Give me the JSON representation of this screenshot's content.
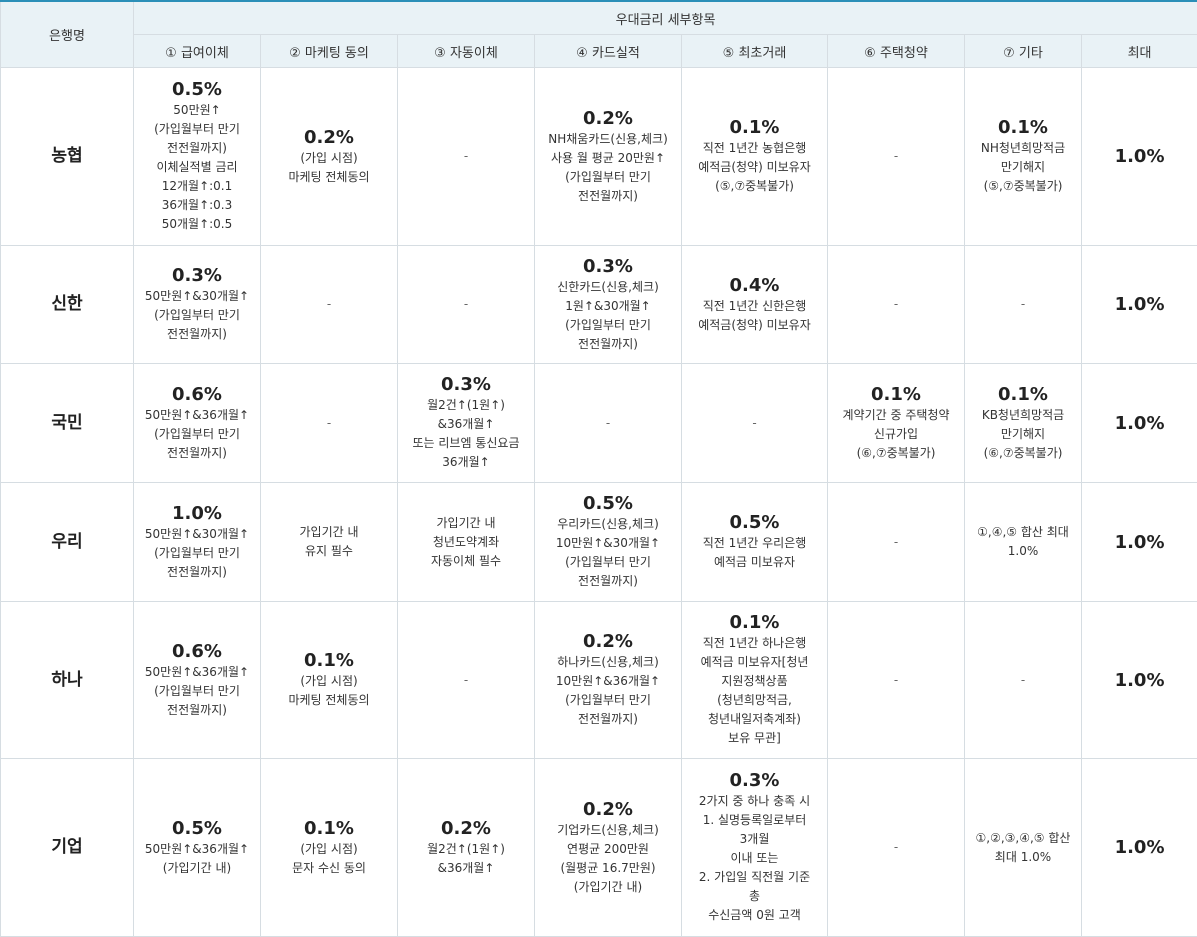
{
  "header": {
    "bank_col": "은행명",
    "group_title": "우대금리 세부항목",
    "columns": [
      "① 급여이체",
      "② 마케팅 동의",
      "③ 자동이체",
      "④ 카드실적",
      "⑤ 최초거래",
      "⑥ 주택청약",
      "⑦ 기타",
      "최대"
    ]
  },
  "rows": [
    {
      "bank": "농협",
      "max": "1.0%",
      "cells": [
        {
          "rate": "0.5%",
          "lines": [
            "50만원↑",
            "(가입월부터 만기",
            "전전월까지)",
            "이체실적별 금리",
            "12개월↑:0.1",
            "36개월↑:0.3",
            "50개월↑:0.5"
          ]
        },
        {
          "rate": "0.2%",
          "lines": [
            "(가입 시점)",
            "마케팅 전체동의"
          ]
        },
        {
          "rate": "",
          "lines": [
            "-"
          ]
        },
        {
          "rate": "0.2%",
          "lines": [
            "NH채움카드(신용,체크)",
            "사용 월 평균 20만원↑",
            "(가입월부터 만기",
            "전전월까지)"
          ]
        },
        {
          "rate": "0.1%",
          "lines": [
            "직전 1년간 농협은행",
            "예적금(청약) 미보유자",
            "(⑤,⑦중복불가)"
          ]
        },
        {
          "rate": "",
          "lines": [
            "-"
          ]
        },
        {
          "rate": "0.1%",
          "lines": [
            "NH청년희망적금",
            "만기해지",
            "(⑤,⑦중복불가)"
          ]
        }
      ]
    },
    {
      "bank": "신한",
      "max": "1.0%",
      "cells": [
        {
          "rate": "0.3%",
          "lines": [
            "50만원↑&30개월↑",
            "(가입일부터 만기",
            "전전월까지)"
          ]
        },
        {
          "rate": "",
          "lines": [
            "-"
          ]
        },
        {
          "rate": "",
          "lines": [
            "-"
          ]
        },
        {
          "rate": "0.3%",
          "lines": [
            "신한카드(신용,체크)",
            "1원↑&30개월↑",
            "(가입일부터 만기",
            "전전월까지)"
          ]
        },
        {
          "rate": "0.4%",
          "lines": [
            "직전 1년간 신한은행",
            "예적금(청약) 미보유자"
          ]
        },
        {
          "rate": "",
          "lines": [
            "-"
          ]
        },
        {
          "rate": "",
          "lines": [
            "-"
          ]
        }
      ]
    },
    {
      "bank": "국민",
      "max": "1.0%",
      "cells": [
        {
          "rate": "0.6%",
          "lines": [
            "50만원↑&36개월↑",
            "(가입월부터 만기",
            "전전월까지)"
          ]
        },
        {
          "rate": "",
          "lines": [
            "-"
          ]
        },
        {
          "rate": "0.3%",
          "lines": [
            "월2건↑(1원↑)",
            "&36개월↑",
            "또는 리브엠 통신요금",
            "36개월↑"
          ]
        },
        {
          "rate": "",
          "lines": [
            "-"
          ]
        },
        {
          "rate": "",
          "lines": [
            "-"
          ]
        },
        {
          "rate": "0.1%",
          "lines": [
            "계약기간 중 주택청약",
            "신규가입",
            "(⑥,⑦중복불가)"
          ]
        },
        {
          "rate": "0.1%",
          "lines": [
            "KB청년희망적금",
            "만기해지",
            "(⑥,⑦중복불가)"
          ]
        }
      ]
    },
    {
      "bank": "우리",
      "max": "1.0%",
      "cells": [
        {
          "rate": "1.0%",
          "lines": [
            "50만원↑&30개월↑",
            "(가입월부터 만기",
            "전전월까지)"
          ]
        },
        {
          "rate": "",
          "lines": [
            "가입기간 내",
            "유지 필수"
          ]
        },
        {
          "rate": "",
          "lines": [
            "가입기간 내",
            "청년도약계좌",
            "자동이체 필수"
          ]
        },
        {
          "rate": "0.5%",
          "lines": [
            "우리카드(신용,체크)",
            "10만원↑&30개월↑",
            "(가입월부터 만기",
            "전전월까지)"
          ]
        },
        {
          "rate": "0.5%",
          "lines": [
            "직전 1년간 우리은행",
            "예적금 미보유자"
          ]
        },
        {
          "rate": "",
          "lines": [
            "-"
          ]
        },
        {
          "rate": "",
          "lines": [
            "①,④,⑤ 합산 최대",
            "1.0%"
          ]
        }
      ]
    },
    {
      "bank": "하나",
      "max": "1.0%",
      "cells": [
        {
          "rate": "0.6%",
          "lines": [
            "50만원↑&36개월↑",
            "(가입월부터 만기",
            "전전월까지)"
          ]
        },
        {
          "rate": "0.1%",
          "lines": [
            "(가입 시점)",
            "마케팅 전체동의"
          ]
        },
        {
          "rate": "",
          "lines": [
            "-"
          ]
        },
        {
          "rate": "0.2%",
          "lines": [
            "하나카드(신용,체크)",
            "10만원↑&36개월↑",
            "(가입월부터 만기",
            "전전월까지)"
          ]
        },
        {
          "rate": "0.1%",
          "lines": [
            "직전 1년간 하나은행",
            "예적금 미보유자[청년",
            "지원정책상품",
            "(청년희망적금,",
            "청년내일저축계좌)",
            "보유 무관]"
          ]
        },
        {
          "rate": "",
          "lines": [
            "-"
          ]
        },
        {
          "rate": "",
          "lines": [
            "-"
          ]
        }
      ]
    },
    {
      "bank": "기업",
      "max": "1.0%",
      "cells": [
        {
          "rate": "0.5%",
          "lines": [
            "50만원↑&36개월↑",
            "(가입기간 내)"
          ]
        },
        {
          "rate": "0.1%",
          "lines": [
            "(가입 시점)",
            "문자 수신 동의"
          ]
        },
        {
          "rate": "0.2%",
          "lines": [
            "월2건↑(1원↑)",
            "&36개월↑"
          ]
        },
        {
          "rate": "0.2%",
          "lines": [
            "기업카드(신용,체크)",
            "연평균 200만원",
            "(월평균 16.7만원)",
            "(가입기간 내)"
          ]
        },
        {
          "rate": "0.3%",
          "lines": [
            "2가지 중 하나 충족 시",
            "1. 실명등록일로부터",
            "3개월",
            "이내 또는",
            "2. 가입일 직전월 기준",
            "총",
            "수신금액 0원 고객"
          ]
        },
        {
          "rate": "",
          "lines": [
            "-"
          ]
        },
        {
          "rate": "",
          "lines": [
            "①,②,③,④,⑤ 합산",
            "최대 1.0%"
          ]
        }
      ]
    }
  ]
}
